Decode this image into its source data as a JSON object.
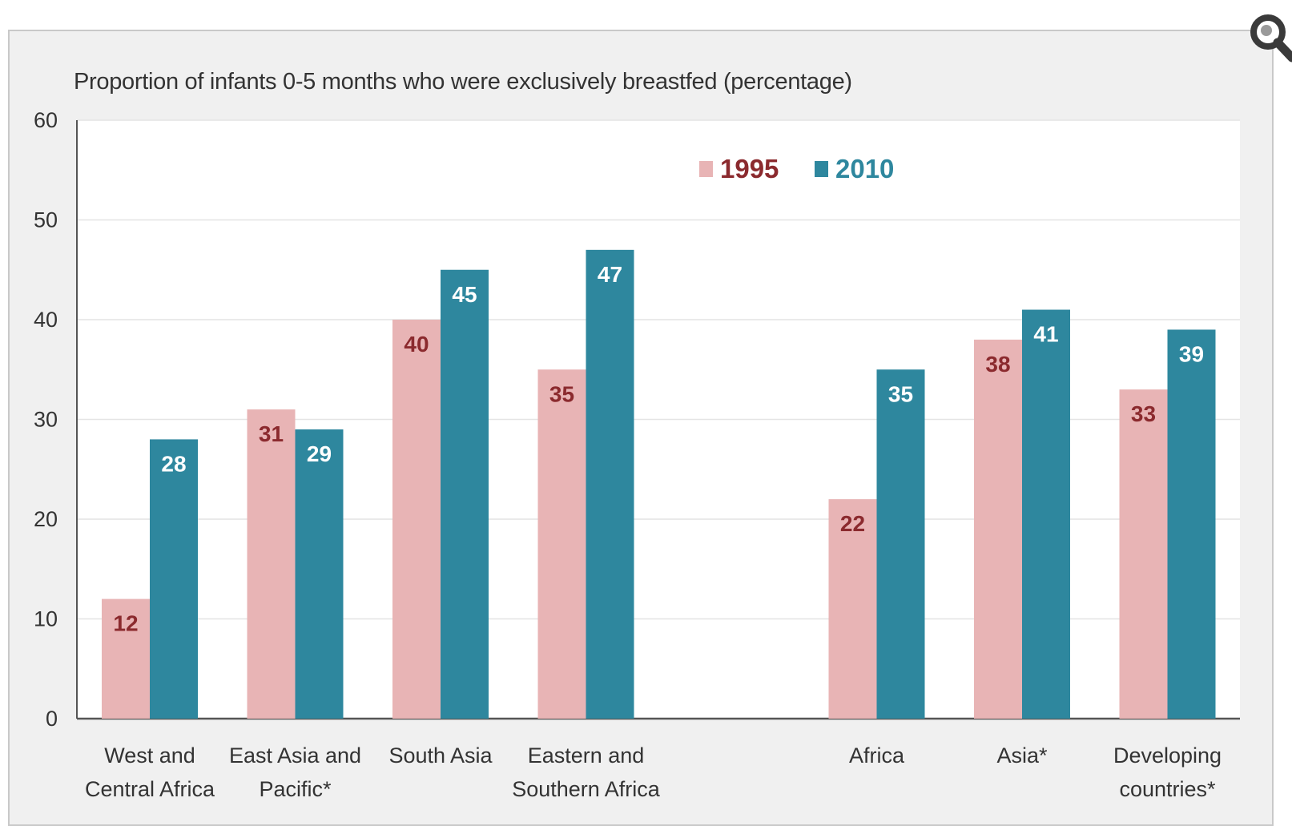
{
  "colors": {
    "series_1995": "#e8b4b5",
    "series_2010": "#2e879e",
    "label_1995": "#8b2a2e",
    "label_2010": "#ffffff"
  },
  "toolbar": {
    "zoom_icon": "magnifier-icon"
  },
  "chart_data": {
    "type": "bar",
    "title": "Proportion of infants 0-5 months who were exclusively breastfed (percentage)",
    "xlabel": "",
    "ylabel": "",
    "ylim": [
      0,
      60
    ],
    "yticks": [
      "0",
      "10",
      "20",
      "30",
      "40",
      "50",
      "60"
    ],
    "grid": true,
    "legend_position": "top-center",
    "categories": [
      [
        "West and",
        "Central Africa"
      ],
      [
        "East Asia and",
        "Pacific*"
      ],
      [
        "South Asia"
      ],
      [
        "Eastern and",
        "Southern Africa"
      ],
      null,
      [
        "Africa"
      ],
      [
        "Asia*"
      ],
      [
        "Developing",
        "countries*"
      ]
    ],
    "series": [
      {
        "name": "1995",
        "values": [
          12,
          31,
          40,
          35,
          null,
          22,
          38,
          33
        ]
      },
      {
        "name": "2010",
        "values": [
          28,
          29,
          45,
          47,
          null,
          35,
          41,
          39
        ]
      }
    ]
  }
}
